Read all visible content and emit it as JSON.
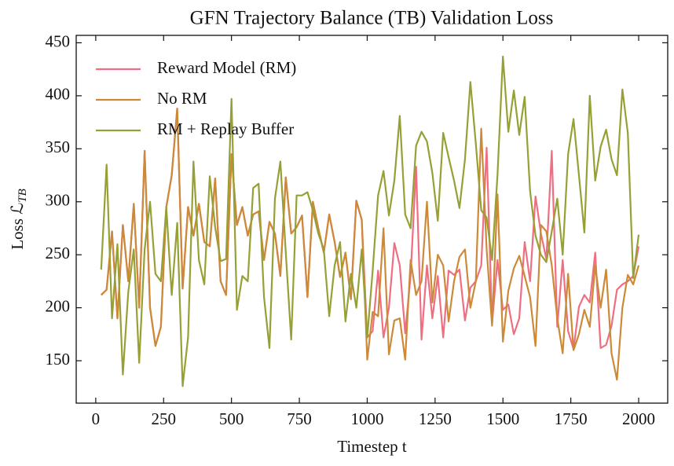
{
  "chart_data": {
    "type": "line",
    "title": "GFN Trajectory Balance (TB) Validation Loss",
    "xlabel": "Timestep t",
    "ylabel": "Loss ℒ_TB",
    "x": [
      20,
      40,
      60,
      80,
      100,
      120,
      140,
      160,
      180,
      200,
      220,
      240,
      260,
      280,
      300,
      320,
      340,
      360,
      380,
      400,
      420,
      440,
      460,
      480,
      500,
      520,
      540,
      560,
      580,
      600,
      620,
      640,
      660,
      680,
      700,
      720,
      740,
      760,
      780,
      800,
      820,
      840,
      860,
      880,
      900,
      920,
      940,
      960,
      980,
      1000,
      1020,
      1040,
      1060,
      1080,
      1100,
      1120,
      1140,
      1160,
      1180,
      1200,
      1220,
      1240,
      1260,
      1280,
      1300,
      1320,
      1340,
      1360,
      1380,
      1400,
      1420,
      1440,
      1460,
      1480,
      1500,
      1520,
      1540,
      1560,
      1580,
      1600,
      1620,
      1640,
      1660,
      1680,
      1700,
      1720,
      1740,
      1760,
      1780,
      1800,
      1820,
      1840,
      1860,
      1880,
      1900,
      1920,
      1940,
      1960,
      1980,
      2000
    ],
    "series": [
      {
        "name": "Reward Model (RM)",
        "color": "#ef6f82",
        "values": [
          212,
          217,
          272,
          190,
          278,
          225,
          298,
          200,
          348,
          200,
          164,
          182,
          295,
          325,
          388,
          218,
          295,
          268,
          298,
          262,
          258,
          322,
          225,
          212,
          345,
          278,
          295,
          268,
          288,
          291,
          245,
          281,
          270,
          230,
          323,
          270,
          276,
          287,
          210,
          300,
          275,
          252,
          288,
          262,
          229,
          252,
          208,
          301,
          283,
          172,
          178,
          235,
          172,
          200,
          261,
          240,
          176,
          230,
          333,
          170,
          240,
          190,
          230,
          172,
          235,
          231,
          236,
          188,
          219,
          225,
          240,
          351,
          185,
          245,
          198,
          203,
          175,
          190,
          262,
          225,
          305,
          270,
          246,
          348,
          182,
          245,
          178,
          161,
          201,
          212,
          205,
          252,
          162,
          165,
          183,
          217,
          222,
          225,
          230,
          258
        ]
      },
      {
        "name": "No RM",
        "color": "#cc8a38",
        "values": [
          212,
          217,
          272,
          190,
          278,
          225,
          298,
          200,
          348,
          200,
          164,
          182,
          295,
          325,
          388,
          218,
          295,
          268,
          298,
          262,
          258,
          322,
          225,
          212,
          345,
          278,
          295,
          268,
          288,
          291,
          245,
          281,
          270,
          230,
          323,
          270,
          276,
          287,
          210,
          300,
          275,
          252,
          288,
          262,
          229,
          252,
          208,
          301,
          283,
          151,
          196,
          192,
          275,
          156,
          188,
          190,
          151,
          245,
          212,
          225,
          300,
          205,
          250,
          240,
          187,
          225,
          248,
          255,
          200,
          225,
          369,
          255,
          183,
          307,
          168,
          216,
          237,
          249,
          230,
          210,
          164,
          278,
          272,
          240,
          190,
          157,
          232,
          160,
          175,
          198,
          182,
          240,
          200,
          236,
          157,
          132,
          200,
          231,
          222,
          240
        ]
      },
      {
        "name": "RM + Replay Buffer",
        "color": "#96a035",
        "values": [
          236,
          335,
          190,
          260,
          137,
          215,
          255,
          148,
          255,
          300,
          232,
          225,
          295,
          212,
          280,
          126,
          172,
          338,
          245,
          222,
          324,
          276,
          244,
          246,
          397,
          198,
          230,
          225,
          313,
          317,
          210,
          162,
          303,
          338,
          252,
          170,
          306,
          306,
          309,
          292,
          270,
          255,
          192,
          240,
          262,
          187,
          232,
          200,
          255,
          172,
          235,
          306,
          329,
          287,
          320,
          381,
          288,
          275,
          353,
          366,
          357,
          327,
          282,
          365,
          342,
          320,
          294,
          340,
          413,
          355,
          292,
          285,
          245,
          325,
          437,
          366,
          405,
          363,
          399,
          310,
          268,
          250,
          243,
          272,
          303,
          250,
          345,
          378,
          325,
          271,
          400,
          320,
          352,
          368,
          340,
          325,
          406,
          365,
          228,
          269
        ]
      }
    ],
    "xlim": [
      -72,
      2107
    ],
    "ylim": [
      110,
      457
    ],
    "xticks": [
      0,
      250,
      500,
      750,
      1000,
      1250,
      1500,
      1750,
      2000
    ],
    "yticks": [
      150,
      200,
      250,
      300,
      350,
      400,
      450
    ],
    "legend": "upper-left"
  }
}
